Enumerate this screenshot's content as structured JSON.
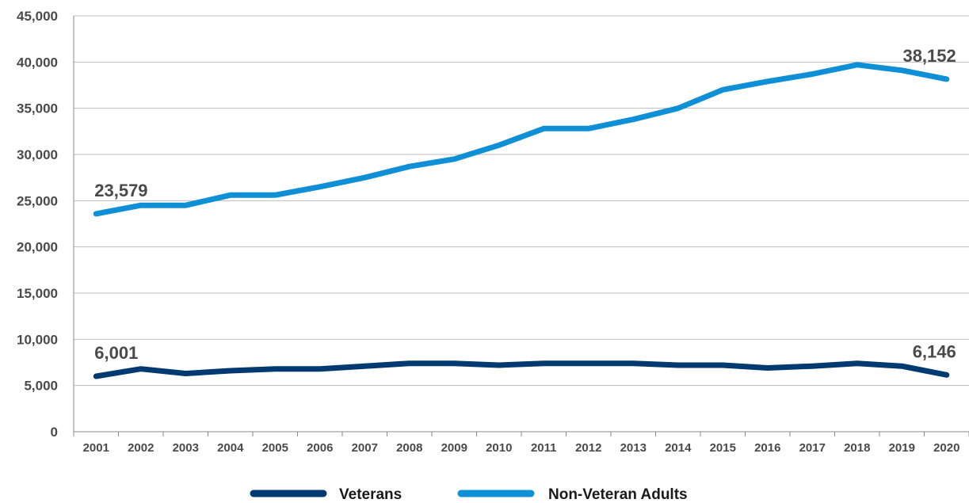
{
  "chart_data": {
    "type": "line",
    "title": "",
    "xlabel": "",
    "ylabel": "",
    "x": [
      "2001",
      "2002",
      "2003",
      "2004",
      "2005",
      "2006",
      "2007",
      "2008",
      "2009",
      "2010",
      "2011",
      "2012",
      "2013",
      "2014",
      "2015",
      "2016",
      "2017",
      "2018",
      "2019",
      "2020"
    ],
    "ylim": [
      0,
      45000
    ],
    "yticks": [
      0,
      5000,
      10000,
      15000,
      20000,
      25000,
      30000,
      35000,
      40000,
      45000
    ],
    "ytick_labels": [
      "0",
      "5,000",
      "10,000",
      "15,000",
      "20,000",
      "25,000",
      "30,000",
      "35,000",
      "40,000",
      "45,000"
    ],
    "grid": true,
    "legend_position": "bottom-center",
    "series": [
      {
        "name": "Veterans",
        "color": "#003a70",
        "values": [
          6001,
          6800,
          6300,
          6600,
          6800,
          6800,
          7100,
          7400,
          7400,
          7200,
          7400,
          7400,
          7400,
          7200,
          7200,
          6900,
          7100,
          7400,
          7100,
          6146
        ],
        "labels": [
          {
            "index": 0,
            "text": "6,001"
          },
          {
            "index": 19,
            "text": "6,146"
          }
        ]
      },
      {
        "name": "Non-Veteran Adults",
        "color": "#0f8fd6",
        "values": [
          23579,
          24500,
          24500,
          25600,
          25600,
          26500,
          27500,
          28700,
          29500,
          31000,
          32800,
          32800,
          33800,
          35000,
          37000,
          37900,
          38700,
          39700,
          39100,
          38152
        ],
        "labels": [
          {
            "index": 0,
            "text": "23,579"
          },
          {
            "index": 19,
            "text": "38,152"
          }
        ]
      }
    ]
  }
}
